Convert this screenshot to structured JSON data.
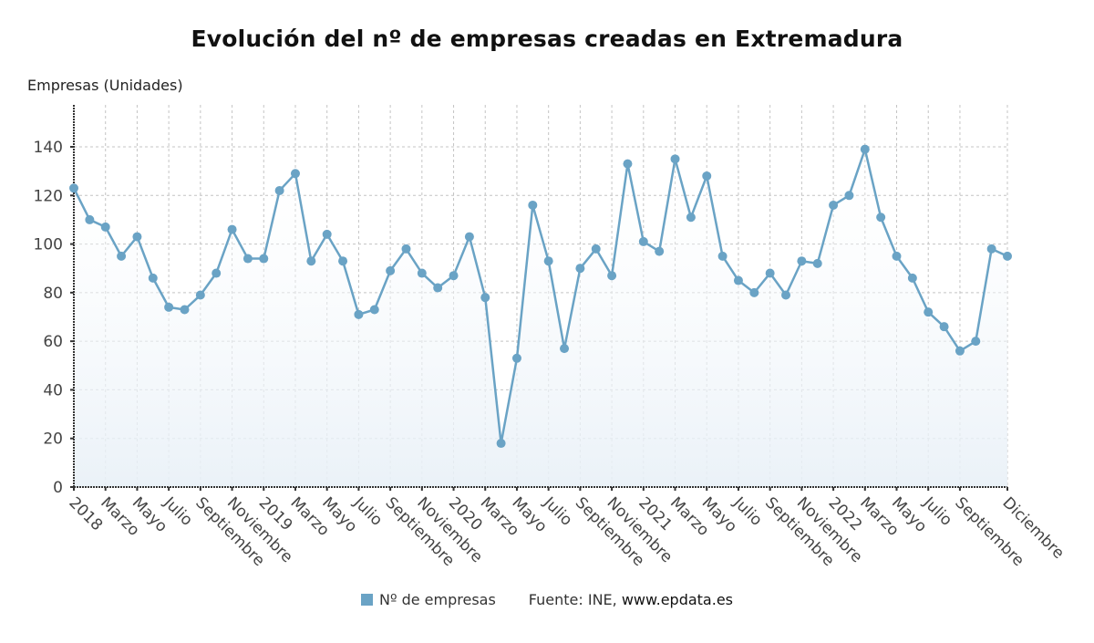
{
  "chart_data": {
    "type": "line",
    "title": "Evolución del nº de empresas creadas en Extremadura",
    "ylabel": "Empresas (Unidades)",
    "xlabel": "",
    "ylim": [
      0,
      155
    ],
    "yticks": [
      0,
      20,
      40,
      60,
      80,
      100,
      120,
      140
    ],
    "grid": true,
    "legend_position": "bottom",
    "x": [
      "2018-01",
      "2018-02",
      "2018-03",
      "2018-04",
      "2018-05",
      "2018-06",
      "2018-07",
      "2018-08",
      "2018-09",
      "2018-10",
      "2018-11",
      "2018-12",
      "2019-01",
      "2019-02",
      "2019-03",
      "2019-04",
      "2019-05",
      "2019-06",
      "2019-07",
      "2019-08",
      "2019-09",
      "2019-10",
      "2019-11",
      "2019-12",
      "2020-01",
      "2020-02",
      "2020-03",
      "2020-04",
      "2020-05",
      "2020-06",
      "2020-07",
      "2020-08",
      "2020-09",
      "2020-10",
      "2020-11",
      "2020-12",
      "2021-01",
      "2021-02",
      "2021-03",
      "2021-04",
      "2021-05",
      "2021-06",
      "2021-07",
      "2021-08",
      "2021-09",
      "2021-10",
      "2021-11",
      "2021-12",
      "2022-01",
      "2022-02",
      "2022-03",
      "2022-04",
      "2022-05",
      "2022-06",
      "2022-07",
      "2022-08",
      "2022-09",
      "2022-10",
      "2022-11",
      "2022-12"
    ],
    "xtick_labels": [
      {
        "index": 0,
        "label": "2018"
      },
      {
        "index": 2,
        "label": "Marzo"
      },
      {
        "index": 4,
        "label": "Mayo"
      },
      {
        "index": 6,
        "label": "Julio"
      },
      {
        "index": 8,
        "label": "Septiembre"
      },
      {
        "index": 10,
        "label": "Noviembre"
      },
      {
        "index": 12,
        "label": "2019"
      },
      {
        "index": 14,
        "label": "Marzo"
      },
      {
        "index": 16,
        "label": "Mayo"
      },
      {
        "index": 18,
        "label": "Julio"
      },
      {
        "index": 20,
        "label": "Septiembre"
      },
      {
        "index": 22,
        "label": "Noviembre"
      },
      {
        "index": 24,
        "label": "2020"
      },
      {
        "index": 26,
        "label": "Marzo"
      },
      {
        "index": 28,
        "label": "Mayo"
      },
      {
        "index": 30,
        "label": "Julio"
      },
      {
        "index": 32,
        "label": "Septiembre"
      },
      {
        "index": 34,
        "label": "Noviembre"
      },
      {
        "index": 36,
        "label": "2021"
      },
      {
        "index": 38,
        "label": "Marzo"
      },
      {
        "index": 40,
        "label": "Mayo"
      },
      {
        "index": 42,
        "label": "Julio"
      },
      {
        "index": 44,
        "label": "Septiembre"
      },
      {
        "index": 46,
        "label": "Noviembre"
      },
      {
        "index": 48,
        "label": "2022"
      },
      {
        "index": 50,
        "label": "Marzo"
      },
      {
        "index": 52,
        "label": "Mayo"
      },
      {
        "index": 54,
        "label": "Julio"
      },
      {
        "index": 56,
        "label": "Septiembre"
      },
      {
        "index": 59,
        "label": "Diciembre"
      }
    ],
    "series": [
      {
        "name": "Nº de empresas",
        "color": "#6aa3c5",
        "values": [
          123,
          110,
          107,
          95,
          103,
          86,
          74,
          73,
          79,
          88,
          106,
          94,
          94,
          122,
          129,
          93,
          104,
          93,
          71,
          73,
          89,
          98,
          88,
          82,
          87,
          103,
          78,
          18,
          53,
          116,
          93,
          57,
          90,
          98,
          87,
          133,
          101,
          97,
          135,
          111,
          128,
          95,
          85,
          80,
          88,
          79,
          93,
          92,
          116,
          120,
          139,
          111,
          95,
          86,
          72,
          66,
          56,
          60,
          98,
          95
        ]
      }
    ]
  },
  "legend": {
    "series_label": "Nº de empresas",
    "series_color": "#6aa3c5",
    "source_prefix": "Fuente: INE, ",
    "source_url": "www.epdata.es"
  }
}
